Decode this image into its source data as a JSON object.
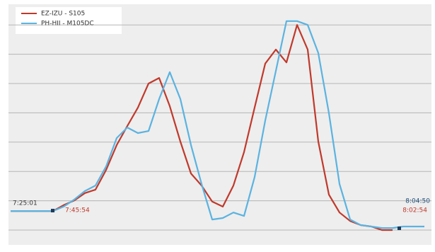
{
  "chart_data": {
    "type": "line",
    "series": [
      {
        "name": "EZ-IZU - S105",
        "color": "#c0392b",
        "values": [
          0.65,
          0.65,
          0.65,
          0.65,
          0.65,
          0.85,
          1.01,
          1.26,
          1.38,
          2.05,
          2.9,
          3.55,
          4.18,
          5.0,
          5.19,
          4.23,
          3.02,
          1.93,
          1.52,
          0.97,
          0.8,
          1.52,
          2.66,
          4.18,
          5.68,
          6.16,
          5.72,
          7.0,
          6.16,
          3.02,
          1.21,
          0.6,
          0.31,
          0.17,
          0.12,
          0,
          0,
          null,
          null,
          null
        ]
      },
      {
        "name": "PH-HII - M105DC",
        "color": "#5bb3e0",
        "values": [
          0.65,
          0.65,
          0.65,
          0.65,
          0.65,
          0.8,
          1.04,
          1.33,
          1.52,
          2.17,
          3.14,
          3.5,
          3.31,
          3.38,
          4.47,
          5.39,
          4.47,
          2.9,
          1.57,
          0.36,
          0.41,
          0.6,
          0.48,
          1.81,
          3.74,
          5.43,
          7.13,
          7.13,
          7.0,
          6.04,
          3.99,
          1.57,
          0.36,
          0.17,
          0.12,
          0.07,
          0.07,
          0.12,
          0.12,
          0.12
        ]
      }
    ],
    "annotations": [
      {
        "text": "7:25:01",
        "color": "#333333"
      },
      {
        "text": "7:45:54",
        "color": "#c0392b"
      },
      {
        "text": "8:04:50",
        "color": "#1f4e79"
      },
      {
        "text": "8:02:54",
        "color": "#c0392b"
      }
    ],
    "ylim": [
      0,
      7.5
    ],
    "yticks": [
      0,
      1,
      2,
      3,
      4,
      5,
      6,
      7
    ],
    "grid": true
  }
}
